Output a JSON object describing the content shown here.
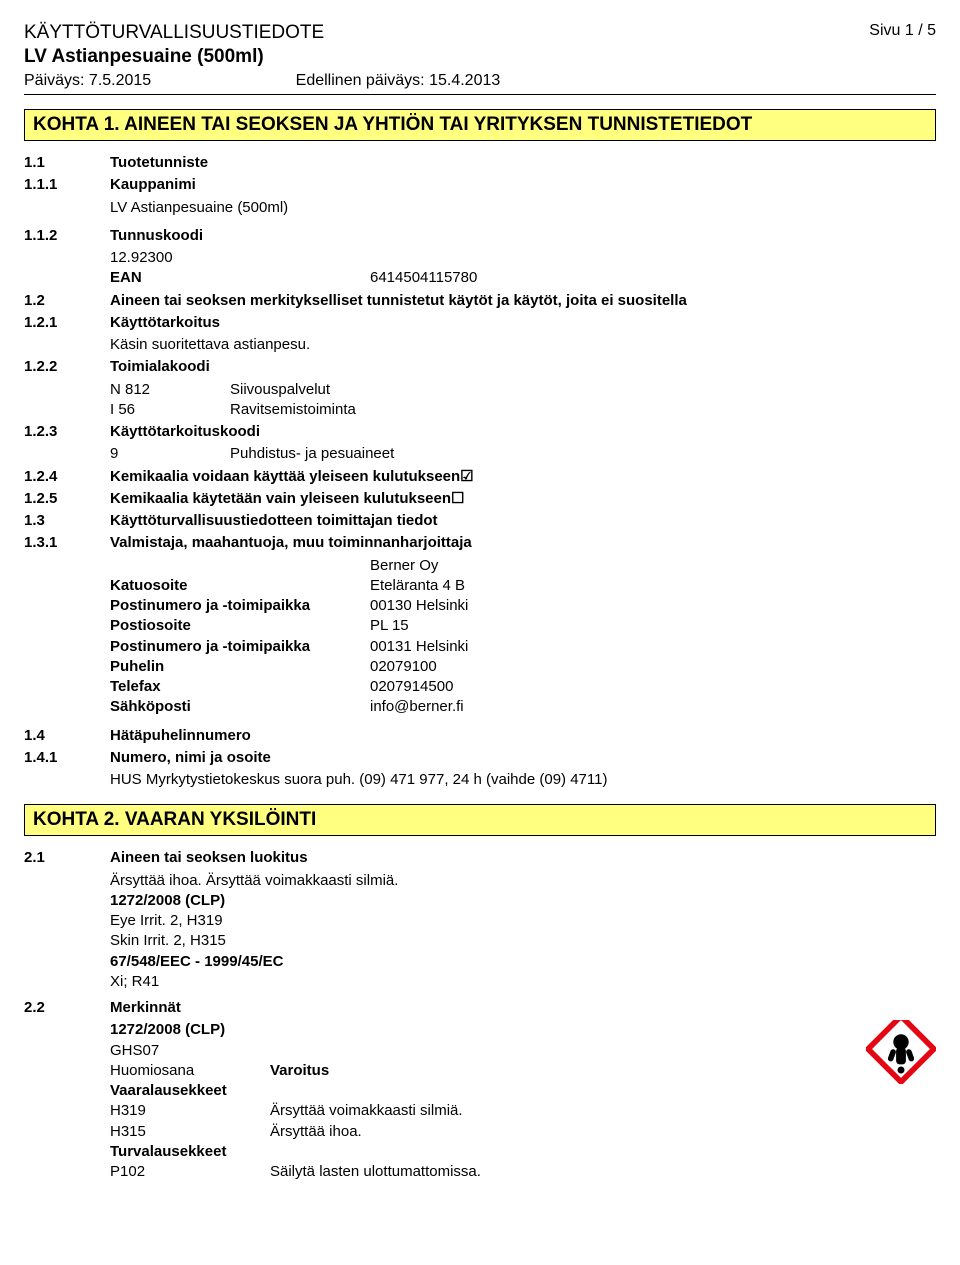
{
  "header": {
    "doc_type": "KÄYTTÖTURVALLISUUSTIEDOTE",
    "page_label": "Sivu  1 / 5",
    "product": "LV Astianpesuaine (500ml)",
    "date_label": "Päiväys:",
    "date": "7.5.2015",
    "prev_label": "Edellinen päiväys:",
    "prev_date": "15.4.2013"
  },
  "s1": {
    "title": "KOHTA 1. AINEEN TAI SEOKSEN JA YHTIÖN TAI YRITYKSEN TUNNISTETIEDOT",
    "r1": {
      "num": "1.1",
      "label": "Tuotetunniste"
    },
    "r11": {
      "num": "1.1.1",
      "label": "Kauppanimi",
      "value": "LV Astianpesuaine (500ml)"
    },
    "r12": {
      "num": "1.1.2",
      "label": "Tunnuskoodi",
      "value": "12.92300",
      "ean_label": "EAN",
      "ean": "6414504115780"
    },
    "r2": {
      "num": "1.2",
      "label": "Aineen tai seoksen merkitykselliset tunnistetut käytöt ja käytöt, joita ei suositella"
    },
    "r21": {
      "num": "1.2.1",
      "label": "Käyttötarkoitus",
      "value": "Käsin suoritettava astianpesu."
    },
    "r22": {
      "num": "1.2.2",
      "label": "Toimialakoodi",
      "codes": [
        {
          "k": "N 812",
          "v": "Siivouspalvelut"
        },
        {
          "k": "I 56",
          "v": "Ravitsemistoiminta"
        }
      ]
    },
    "r23": {
      "num": "1.2.3",
      "label": "Käyttötarkoituskoodi",
      "codes": [
        {
          "k": "9",
          "v": "Puhdistus- ja pesuaineet"
        }
      ]
    },
    "r24": {
      "num": "1.2.4",
      "label": "Kemikaalia voidaan käyttää yleiseen kulutukseen",
      "mark": "☑"
    },
    "r25": {
      "num": "1.2.5",
      "label": "Kemikaalia käytetään vain yleiseen kulutukseen",
      "mark": "☐"
    },
    "r3": {
      "num": "1.3",
      "label": "Käyttöturvallisuustiedotteen toimittajan tiedot"
    },
    "r31": {
      "num": "1.3.1",
      "label": "Valmistaja, maahantuoja, muu toiminnanharjoittaja",
      "company": "Berner Oy",
      "lines": [
        {
          "k": "Katuosoite",
          "v": "Eteläranta 4 B",
          "bold": true
        },
        {
          "k": "Postinumero ja -toimipaikka",
          "v": "00130 Helsinki",
          "bold": true
        },
        {
          "k": "Postiosoite",
          "v": "PL 15",
          "bold": true
        },
        {
          "k": "Postinumero ja -toimipaikka",
          "v": "00131 Helsinki",
          "bold": true
        },
        {
          "k": "Puhelin",
          "v": "02079100",
          "bold": true
        },
        {
          "k": "Telefax",
          "v": "0207914500",
          "bold": true
        },
        {
          "k": "Sähköposti",
          "v": "info@berner.fi",
          "bold": true
        }
      ]
    },
    "r4": {
      "num": "1.4",
      "label": "Hätäpuhelinnumero"
    },
    "r41": {
      "num": "1.4.1",
      "label": "Numero, nimi ja osoite",
      "value": "HUS Myrkytystietokeskus suora puh. (09) 471 977, 24 h  (vaihde (09) 4711)"
    }
  },
  "s2": {
    "title": "KOHTA 2. VAARAN YKSILÖINTI",
    "r21": {
      "num": "2.1",
      "label": "Aineen tai seoksen luokitus",
      "line1": "Ärsyttää ihoa. Ärsyttää voimakkaasti silmiä.",
      "clp_label": "1272/2008 (CLP)",
      "clp_lines": [
        "Eye Irrit. 2, H319",
        "Skin Irrit. 2, H315"
      ],
      "ec_label": "67/548/EEC - 1999/45/EC",
      "ec_lines": [
        "Xi; R41"
      ]
    },
    "r22": {
      "num": "2.2",
      "label": "Merkinnät",
      "clp_label": "1272/2008 (CLP)",
      "ghs": "GHS07",
      "signal_label": "Huomiosana",
      "signal": "Varoitus",
      "hstmt_label": "Vaaralausekkeet",
      "hstmts": [
        {
          "k": "H319",
          "v": "Ärsyttää voimakkaasti silmiä."
        },
        {
          "k": "H315",
          "v": "Ärsyttää ihoa."
        }
      ],
      "pstmt_label": "Turvalausekkeet",
      "pstmts": [
        {
          "k": "P102",
          "v": "Säilytä lasten ulottumattomissa."
        }
      ],
      "pictogram": {
        "border": "#e30613",
        "fill": "#ffffff",
        "mark": "#000000"
      }
    }
  }
}
